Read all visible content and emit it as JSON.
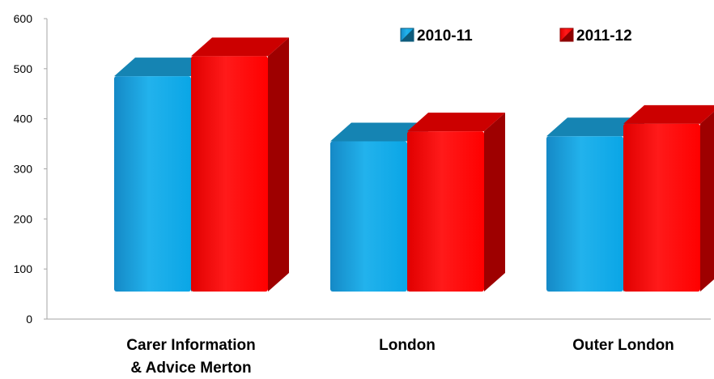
{
  "chart_data": {
    "type": "bar",
    "categories": [
      "Carer Information & Advice Merton",
      "London",
      "Outer London"
    ],
    "series": [
      {
        "name": "2010-11",
        "values": [
          485,
          355,
          365
        ],
        "color": "#1aa5e0"
      },
      {
        "name": "2011-12",
        "values": [
          525,
          375,
          390
        ],
        "color": "#ff0000"
      }
    ],
    "ylim": [
      0,
      600
    ],
    "yticks": [
      0,
      100,
      200,
      300,
      400,
      500,
      600
    ],
    "grid": false,
    "legend": "top-right",
    "three_d": true
  }
}
